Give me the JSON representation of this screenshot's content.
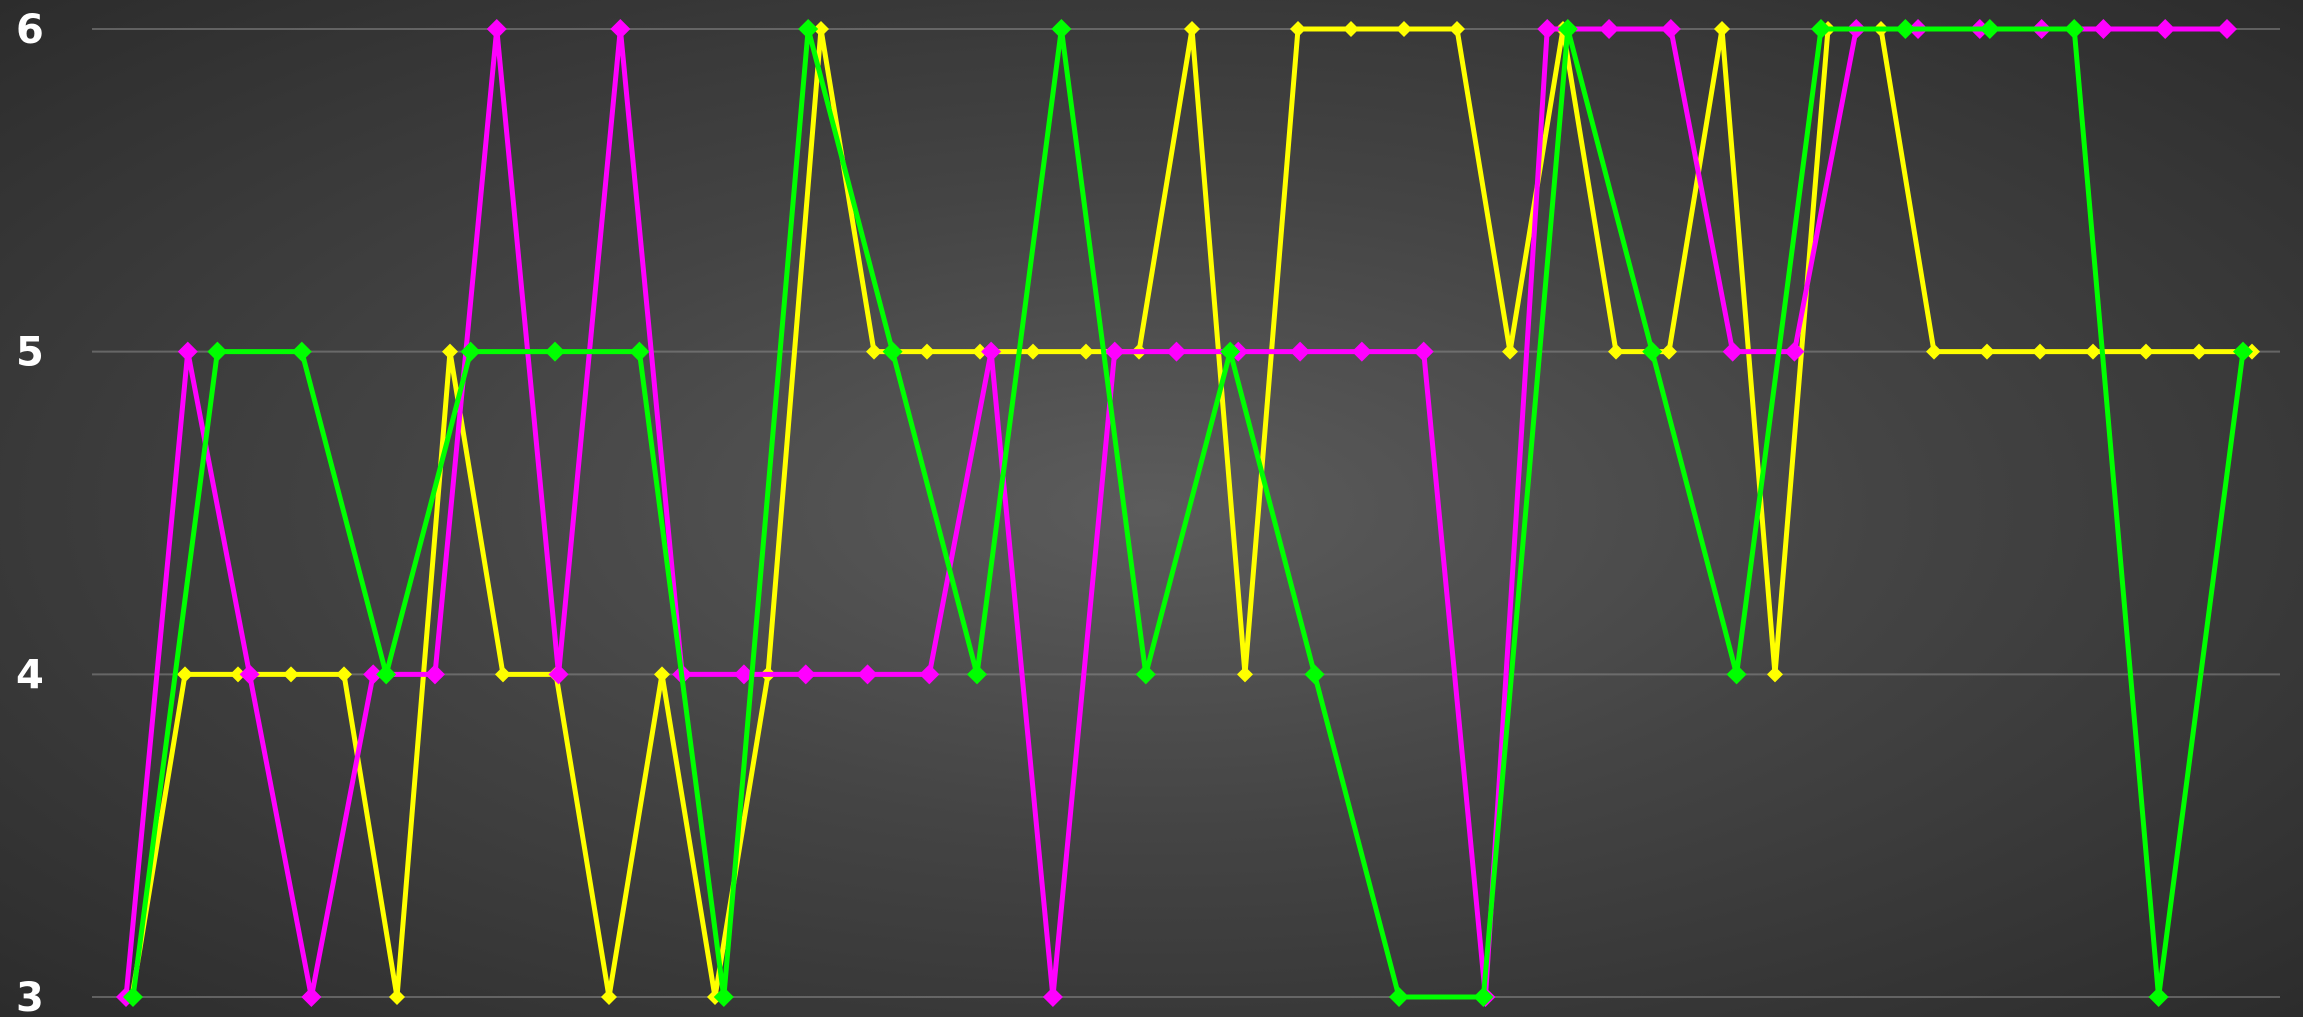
{
  "chart_data": {
    "type": "line",
    "title": "",
    "xlabel": "",
    "ylabel": "",
    "ylim": [
      3,
      6
    ],
    "yticks": [
      3,
      4,
      5,
      6
    ],
    "grid": true,
    "legend": "none",
    "series": [
      {
        "color": "#ffff00",
        "marker": "diamond",
        "x": [
          1,
          2,
          3,
          4,
          5,
          6,
          7,
          8,
          9,
          10,
          11,
          12,
          13,
          14,
          15,
          16,
          17,
          18,
          19,
          20,
          21,
          22,
          23,
          24,
          25,
          26,
          27,
          28,
          29,
          30,
          31,
          32,
          33,
          34,
          35,
          36,
          37,
          38,
          39,
          40,
          41
        ],
        "values": [
          3,
          4,
          4,
          4,
          4,
          3,
          5,
          4,
          4,
          3,
          4,
          3,
          4,
          6,
          5,
          5,
          5,
          5,
          5,
          5,
          6,
          4,
          6,
          6,
          6,
          6,
          5,
          6,
          5,
          5,
          6,
          4,
          6,
          6,
          5,
          5,
          5,
          5,
          5,
          5,
          5
        ]
      },
      {
        "color": "#ff00ff",
        "marker": "diamond",
        "x": [
          1,
          2,
          3,
          4,
          5,
          6,
          7,
          8,
          9,
          10,
          11,
          12,
          13,
          14,
          15,
          16,
          17,
          18,
          19,
          20,
          21,
          22,
          23,
          24,
          25,
          26,
          27,
          28,
          29,
          30,
          31,
          32,
          33,
          34,
          35
        ],
        "values": [
          3,
          5,
          4,
          3,
          4,
          4,
          6,
          4,
          6,
          4,
          4,
          4,
          4,
          4,
          5,
          3,
          5,
          5,
          5,
          5,
          5,
          5,
          3,
          6,
          6,
          6,
          5,
          5,
          6,
          6,
          6,
          6,
          6,
          6,
          6
        ]
      },
      {
        "color": "#00ff00",
        "marker": "diamond",
        "x": [
          1,
          2,
          3,
          4,
          5,
          6,
          7,
          8,
          9,
          10,
          11,
          12,
          13,
          14,
          15,
          16,
          17,
          18,
          19,
          20,
          21,
          22,
          23,
          24,
          25,
          26
        ],
        "values": [
          3,
          5,
          5,
          4,
          5,
          5,
          5,
          3,
          6,
          5,
          4,
          6,
          4,
          5,
          4,
          3,
          3,
          6,
          5,
          4,
          6,
          6,
          6,
          6,
          3,
          5
        ]
      }
    ]
  }
}
